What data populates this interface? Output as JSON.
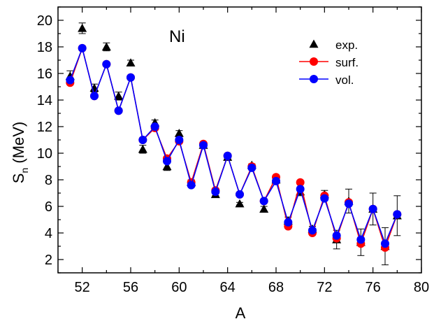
{
  "chart_data": {
    "type": "scatter",
    "annotation": "Ni",
    "xlabel": "A",
    "ylabel_main": "S",
    "ylabel_sub": "n",
    "ylabel_unit": " (MeV)",
    "xlim": [
      50,
      80
    ],
    "ylim": [
      1,
      21
    ],
    "xticks": [
      52,
      56,
      60,
      64,
      68,
      72,
      76,
      80
    ],
    "yticks": [
      2,
      4,
      6,
      8,
      10,
      12,
      14,
      16,
      18,
      20
    ],
    "grid": false,
    "legend_position": "upper-right",
    "series": [
      {
        "name": "exp.",
        "style": "markers",
        "marker": "triangle",
        "color": "#000000",
        "x": [
          51,
          52,
          53,
          54,
          55,
          56,
          57,
          58,
          59,
          60,
          61,
          62,
          63,
          64,
          65,
          66,
          67,
          68,
          69,
          70,
          71,
          72,
          73,
          74,
          75,
          76,
          77,
          78
        ],
        "y": [
          15.8,
          19.4,
          14.9,
          18.0,
          14.3,
          16.8,
          10.3,
          12.3,
          9.0,
          11.5,
          7.8,
          10.6,
          6.9,
          9.7,
          6.2,
          9.1,
          5.8,
          8.0,
          4.9,
          7.1,
          4.3,
          6.9,
          3.5,
          6.4,
          3.3,
          5.8,
          3.0,
          5.3
        ],
        "err": [
          0.4,
          0.4,
          0.3,
          0.3,
          0.3,
          0.2,
          0.3,
          0.2,
          0.3,
          0.2,
          0.2,
          0.1,
          0.1,
          0.1,
          0.1,
          0.1,
          0.2,
          0.1,
          0.3,
          0.3,
          0.2,
          0.3,
          0.7,
          0.9,
          1.0,
          1.2,
          1.4,
          1.5
        ]
      },
      {
        "name": "surf.",
        "style": "line+markers",
        "marker": "circle",
        "color": "#ff0000",
        "x": [
          51,
          52,
          53,
          54,
          55,
          56,
          57,
          58,
          59,
          60,
          61,
          62,
          63,
          64,
          65,
          66,
          67,
          68,
          69,
          70,
          71,
          72,
          73,
          74,
          75,
          76,
          77,
          78
        ],
        "y": [
          15.3,
          17.9,
          14.3,
          16.7,
          13.2,
          15.7,
          11.0,
          11.9,
          9.6,
          10.9,
          7.8,
          10.7,
          7.2,
          9.8,
          6.9,
          9.0,
          6.4,
          8.2,
          4.5,
          7.8,
          4.0,
          6.8,
          3.6,
          6.3,
          3.2,
          5.8,
          2.9,
          5.4
        ]
      },
      {
        "name": "vol.",
        "style": "line+markers",
        "marker": "circle",
        "color": "#0000ff",
        "x": [
          51,
          52,
          53,
          54,
          55,
          56,
          57,
          58,
          59,
          60,
          61,
          62,
          63,
          64,
          65,
          66,
          67,
          68,
          69,
          70,
          71,
          72,
          73,
          74,
          75,
          76,
          77,
          78
        ],
        "y": [
          15.5,
          17.9,
          14.3,
          16.7,
          13.2,
          15.7,
          11.0,
          12.0,
          9.4,
          11.0,
          7.6,
          10.6,
          7.1,
          9.8,
          6.9,
          8.9,
          6.4,
          7.9,
          4.8,
          7.3,
          4.2,
          6.6,
          3.8,
          6.2,
          3.5,
          5.8,
          3.2,
          5.4
        ]
      }
    ]
  }
}
